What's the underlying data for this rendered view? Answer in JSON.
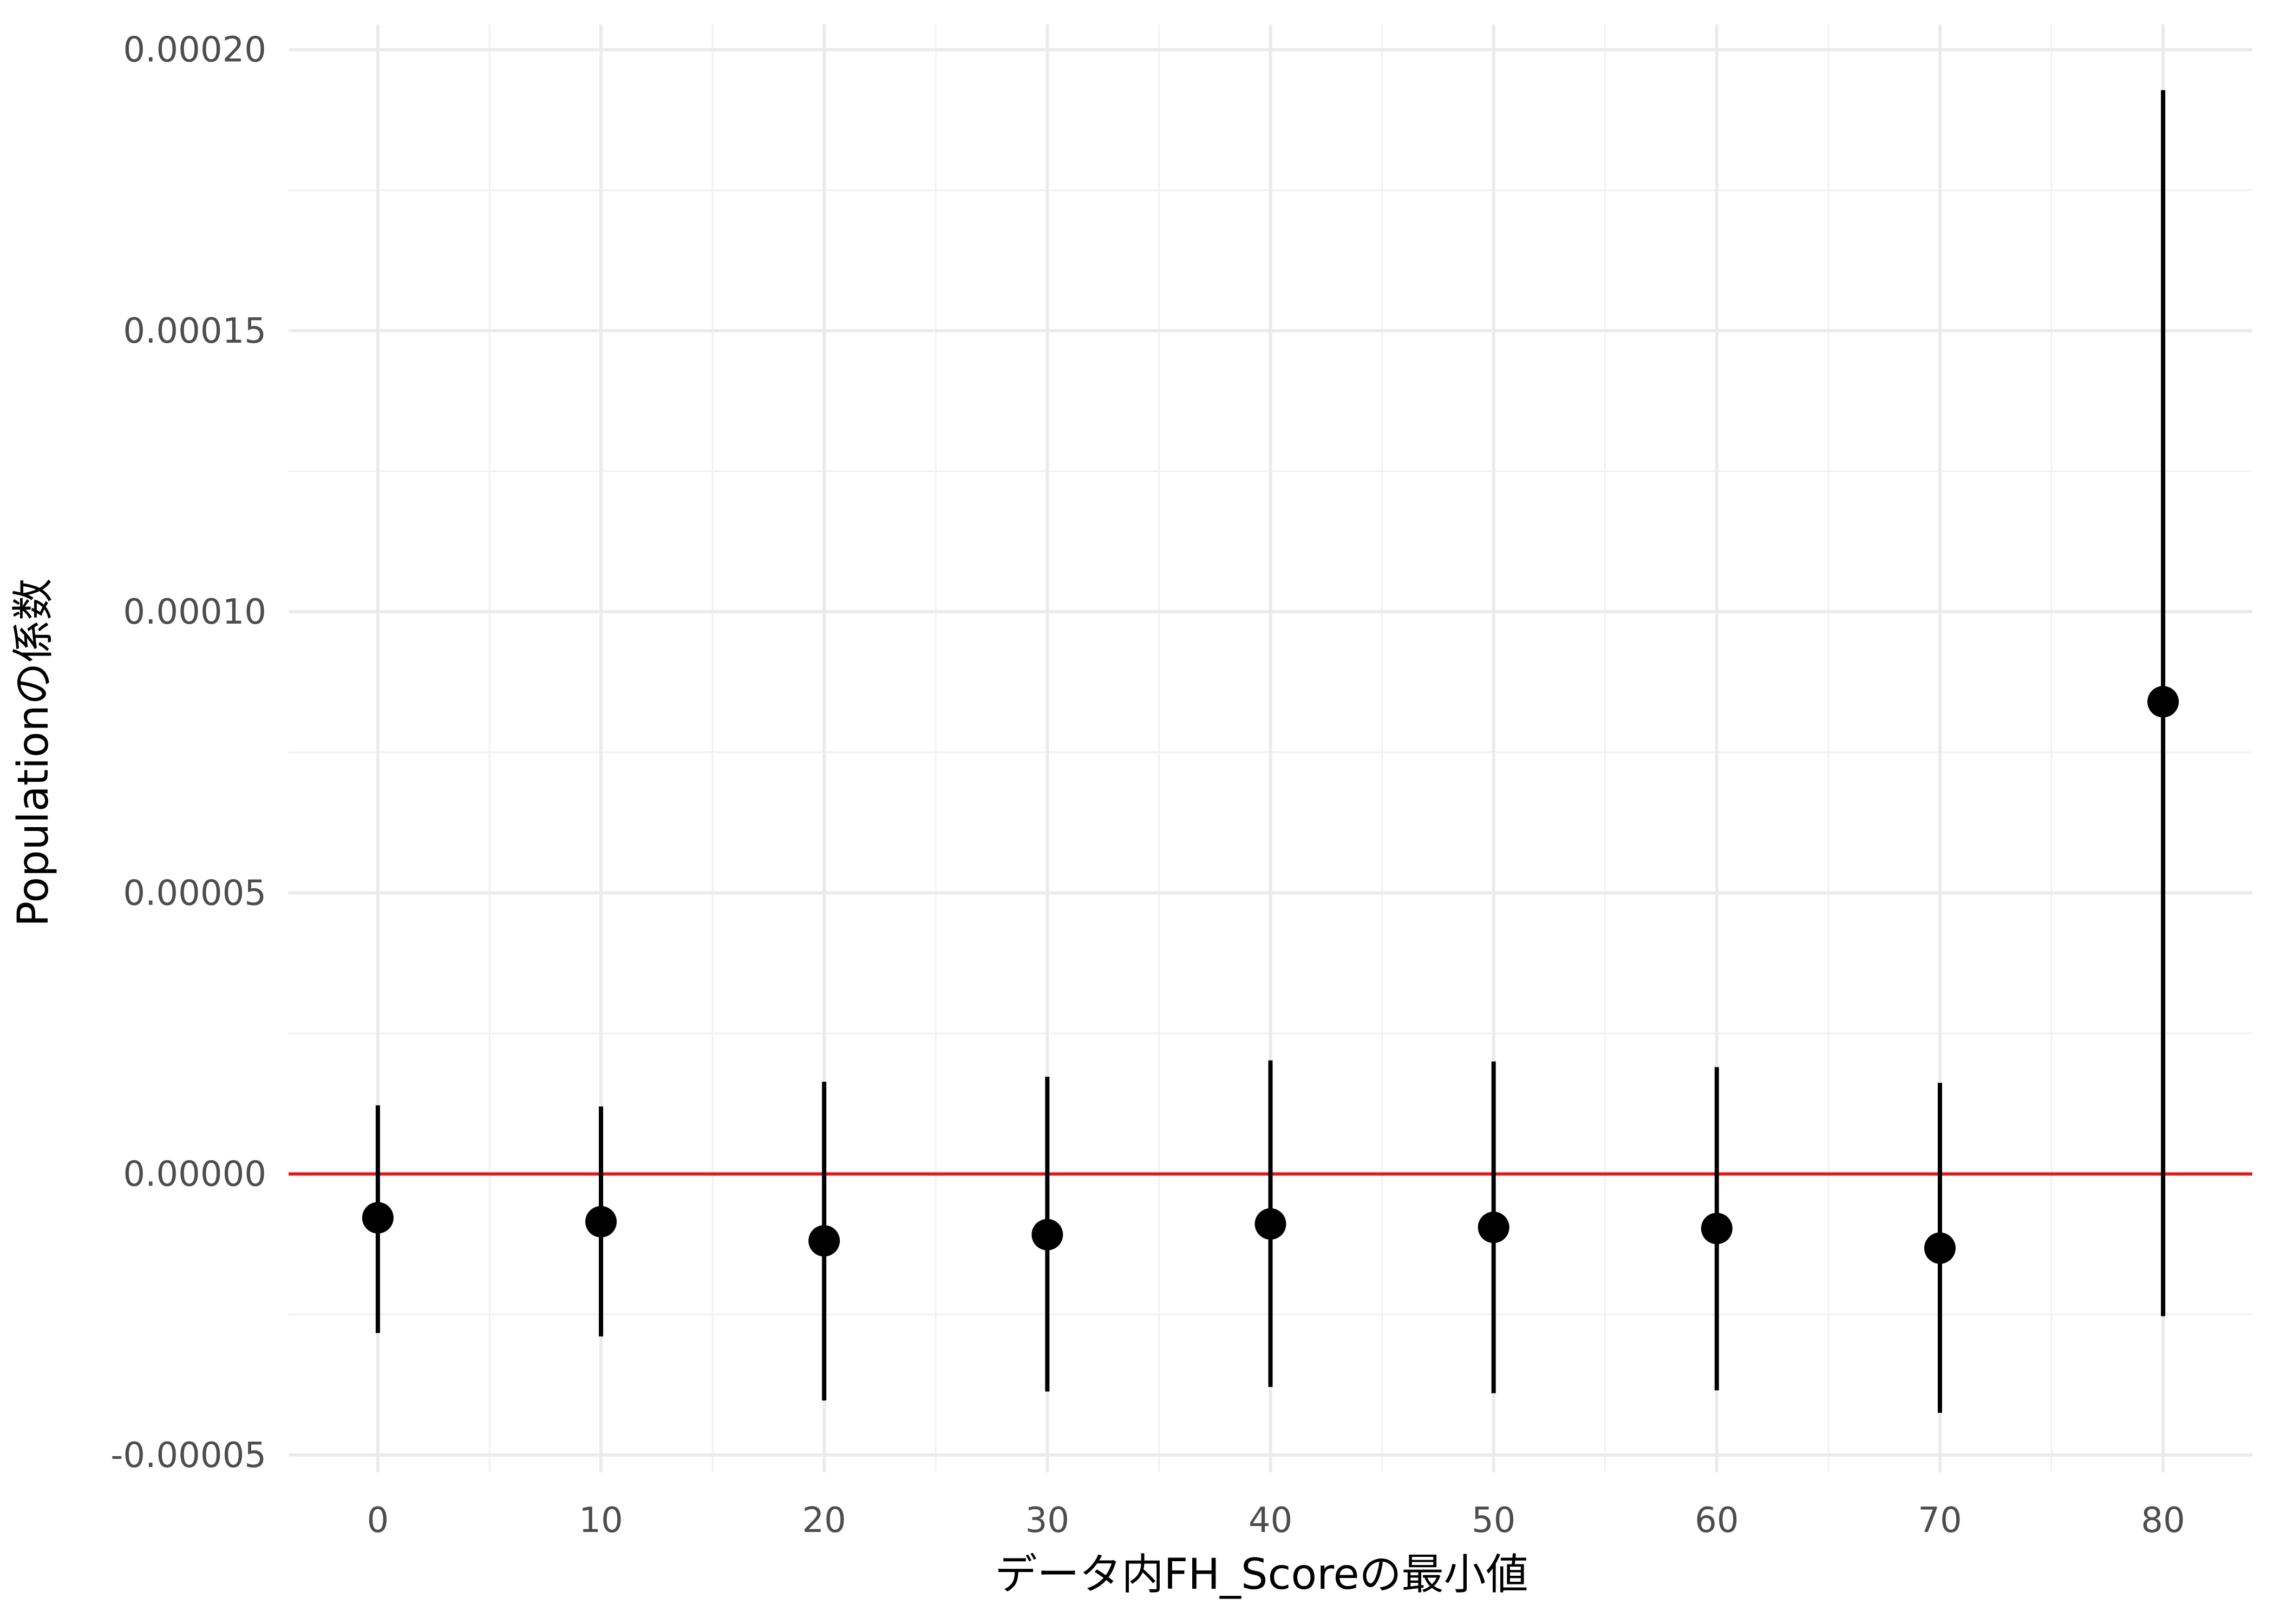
{
  "chart_data": {
    "type": "scatter",
    "xlabel": "データ内FH_Scoreの最小値",
    "ylabel": "Populationの係数",
    "xlim": [
      -4,
      84
    ],
    "ylim": [
      -5.31e-05,
      0.0002045
    ],
    "x_ticks": [
      0,
      10,
      20,
      30,
      40,
      50,
      60,
      70,
      80
    ],
    "x_tick_labels": [
      "0",
      "10",
      "20",
      "30",
      "40",
      "50",
      "60",
      "70",
      "80"
    ],
    "y_ticks": [
      -5e-05,
      0,
      5e-05,
      0.0001,
      0.00015,
      0.0002
    ],
    "y_tick_labels": [
      "-0.00005",
      "0.00000",
      "0.00005",
      "0.00010",
      "0.00015",
      "0.00020"
    ],
    "grid": true,
    "reference_line": {
      "y": 0,
      "color": "#e31a1c"
    },
    "series": [
      {
        "x": [
          0,
          10,
          20,
          30,
          40,
          50,
          60,
          70,
          80
        ],
        "y": [
          -7.8e-06,
          -8.5e-06,
          -1.19e-05,
          -1.08e-05,
          -8.9e-06,
          -9.5e-06,
          -9.7e-06,
          -1.32e-05,
          8.4e-05
        ],
        "lower": [
          -2.83e-05,
          -2.89e-05,
          -4.03e-05,
          -3.87e-05,
          -3.79e-05,
          -3.9e-05,
          -3.85e-05,
          -4.25e-05,
          -2.53e-05
        ],
        "upper": [
          1.22e-05,
          1.2e-05,
          1.64e-05,
          1.73e-05,
          2.02e-05,
          2e-05,
          1.9e-05,
          1.62e-05,
          0.0001928
        ],
        "color": "#000000"
      }
    ]
  }
}
